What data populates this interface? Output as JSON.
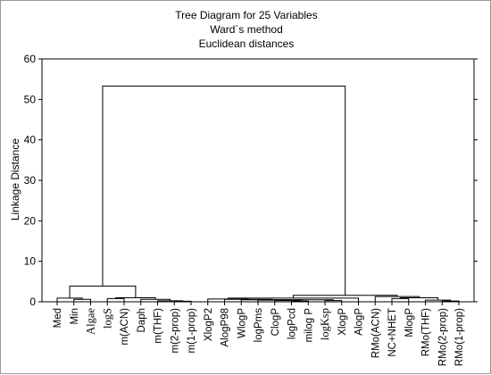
{
  "chart_data": {
    "type": "dendrogram",
    "title_lines": [
      "Tree Diagram for 25 Variables",
      "Ward`s method",
      "Euclidean distances"
    ],
    "ylabel": "Linkage Distance",
    "ylim": [
      0,
      60
    ],
    "yticks": [
      0,
      10,
      20,
      30,
      40,
      50,
      60
    ],
    "grid": false,
    "leaves": [
      {
        "text": "Med",
        "style": "sans"
      },
      {
        "text": "Min",
        "style": "sans"
      },
      {
        "text": "Algae",
        "style": "serif"
      },
      {
        "text": "logS",
        "style": "serif",
        "italic_tail": "S"
      },
      {
        "text": "m(ACN)",
        "style": "sans"
      },
      {
        "text": "Daph",
        "style": "sans"
      },
      {
        "text": "m(THF)",
        "style": "sans"
      },
      {
        "text": "m(2-prop)",
        "style": "sans"
      },
      {
        "text": "m(1-prop)",
        "style": "sans"
      },
      {
        "text": "XlogP2",
        "style": "sans"
      },
      {
        "text": "AlogP98",
        "style": "sans"
      },
      {
        "text": "WlogP",
        "style": "sans"
      },
      {
        "text": "logPms",
        "style": "sans"
      },
      {
        "text": "ClogP",
        "style": "sans"
      },
      {
        "text": "logPcd",
        "style": "sans"
      },
      {
        "text": "milog P",
        "style": "sans"
      },
      {
        "text": "logKsp",
        "style": "serif"
      },
      {
        "text": "XlogP",
        "style": "sans"
      },
      {
        "text": "AlogP",
        "style": "sans"
      },
      {
        "text": "RMo(ACN)",
        "style": "sans"
      },
      {
        "text": "NC+NHET",
        "style": "sans"
      },
      {
        "text": "MlogP",
        "style": "sans"
      },
      {
        "text": "RMo(THF)",
        "style": "sans"
      },
      {
        "text": "RMo(2-prop)",
        "style": "sans"
      },
      {
        "text": "RMo(1-prop)",
        "style": "sans"
      }
    ],
    "merges": [
      {
        "left": "L1",
        "right": "L2",
        "height": 0.6
      },
      {
        "left": "L0",
        "right": "N0",
        "height": 0.9
      },
      {
        "left": "L7",
        "right": "L8",
        "height": 0.15
      },
      {
        "left": "L6",
        "right": "N2",
        "height": 0.25
      },
      {
        "left": "L5",
        "right": "N3",
        "height": 0.6
      },
      {
        "left": "L3",
        "right": "L4",
        "height": 0.8
      },
      {
        "left": "N5",
        "right": "N4",
        "height": 1.0
      },
      {
        "left": "N1",
        "right": "N6",
        "height": 3.9
      },
      {
        "left": "L14",
        "right": "L15",
        "height": 0.2
      },
      {
        "left": "L13",
        "right": "N8",
        "height": 0.3
      },
      {
        "left": "L12",
        "right": "N9",
        "height": 0.4
      },
      {
        "left": "L16",
        "right": "L17",
        "height": 0.3
      },
      {
        "left": "N10",
        "right": "N11",
        "height": 0.5
      },
      {
        "left": "L11",
        "right": "N12",
        "height": 0.5
      },
      {
        "left": "L10",
        "right": "N13",
        "height": 0.6
      },
      {
        "left": "L9",
        "right": "N14",
        "height": 0.7
      },
      {
        "left": "N15",
        "right": "L18",
        "height": 0.9
      },
      {
        "left": "L23",
        "right": "L24",
        "height": 0.2
      },
      {
        "left": "L22",
        "right": "N17",
        "height": 0.4
      },
      {
        "left": "L20",
        "right": "L21",
        "height": 0.8
      },
      {
        "left": "N19",
        "right": "N18",
        "height": 1.0
      },
      {
        "left": "L19",
        "right": "N20",
        "height": 1.3
      },
      {
        "left": "N16",
        "right": "N21",
        "height": 1.6
      },
      {
        "left": "N7",
        "right": "N22",
        "height": 53.3
      }
    ]
  }
}
